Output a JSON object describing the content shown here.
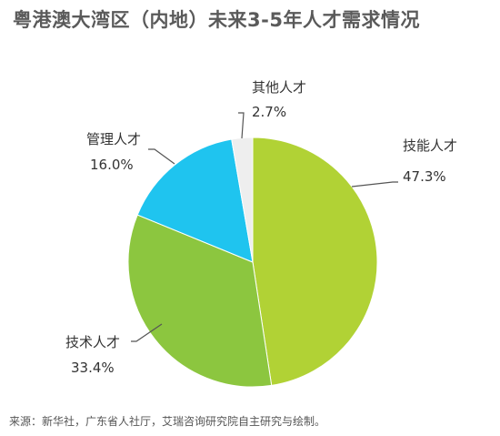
{
  "chart_data": {
    "type": "pie",
    "title": "粤港澳大湾区（内地）未来3-5年人才需求情况",
    "slices": [
      {
        "label": "技能人才",
        "value": 47.3,
        "value_label": "47.3%",
        "color": "#b1d235"
      },
      {
        "label": "技术人才",
        "value": 33.4,
        "value_label": "33.4%",
        "color": "#8cc63f"
      },
      {
        "label": "管理人才",
        "value": 16.0,
        "value_label": "16.0%",
        "color": "#1fc4ef"
      },
      {
        "label": "其他人才",
        "value": 2.7,
        "value_label": "2.7%",
        "color": "#eeeeee"
      }
    ],
    "start_angle_deg": 0,
    "direction": "clockwise"
  },
  "source": "来源：新华社，广东省人社厅，艾瑞咨询研究院自主研究与绘制。"
}
